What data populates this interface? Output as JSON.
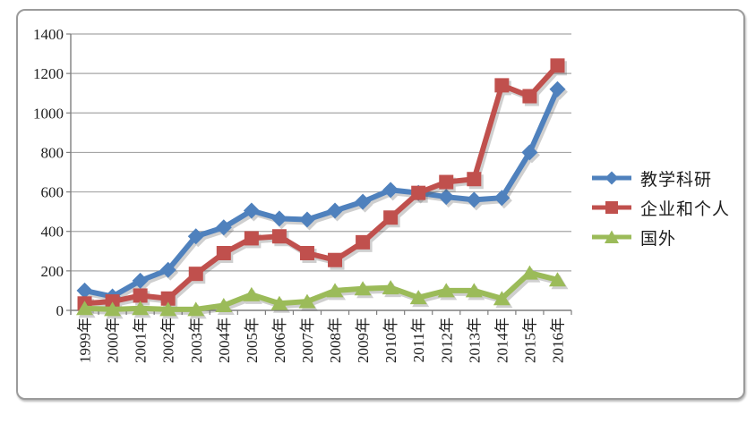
{
  "chart_data": {
    "type": "line",
    "title": "",
    "xlabel": "",
    "ylabel": "",
    "categories": [
      "1999年",
      "2000年",
      "2001年",
      "2002年",
      "2003年",
      "2004年",
      "2005年",
      "2006年",
      "2007年",
      "2008年",
      "2009年",
      "2010年",
      "2011年",
      "2012年",
      "2013年",
      "2014年",
      "2015年",
      "2016年"
    ],
    "series": [
      {
        "name": "教学科研",
        "marker": "diamond",
        "color": "#4F81BD",
        "values": [
          100,
          70,
          150,
          205,
          375,
          420,
          505,
          465,
          460,
          505,
          550,
          610,
          595,
          575,
          560,
          570,
          800,
          1120
        ]
      },
      {
        "name": "企业和个人",
        "marker": "square",
        "color": "#C0504D",
        "values": [
          35,
          45,
          75,
          60,
          185,
          290,
          365,
          375,
          290,
          255,
          345,
          470,
          595,
          650,
          665,
          1140,
          1085,
          1240
        ]
      },
      {
        "name": "国外",
        "marker": "triangle",
        "color": "#9BBB59",
        "values": [
          10,
          5,
          10,
          5,
          5,
          25,
          80,
          35,
          45,
          100,
          110,
          115,
          65,
          100,
          100,
          60,
          190,
          155
        ]
      }
    ],
    "ylim": [
      0,
      1400
    ],
    "yticks": [
      0,
      200,
      400,
      600,
      800,
      1000,
      1200,
      1400
    ],
    "grid": true,
    "legend_position": "right",
    "grid_color": "#A6A6A6",
    "axis_color": "#7F7F7F"
  }
}
